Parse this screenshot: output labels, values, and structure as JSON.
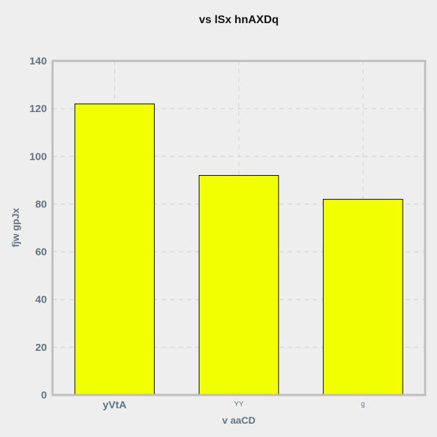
{
  "chart_data": {
    "type": "bar",
    "title": "vs  lSx hnAXDq",
    "xlabel": "v aaCD",
    "ylabel": "fjw gpJx",
    "categories": [
      "yVtA",
      "YY",
      "g"
    ],
    "values": [
      122,
      92,
      82
    ],
    "ylim": [
      0,
      140
    ],
    "yticks": [
      0,
      20,
      40,
      60,
      80,
      100,
      120,
      140
    ],
    "grid": true,
    "legend": "none",
    "colors": {
      "bar_fill": "#f2ff00",
      "bar_stroke": "#000000",
      "plot_background": "#eeeeee",
      "frame": "#bdbdbd",
      "grid": "#cfcfcf",
      "axis_text": "#5f7480",
      "title_text": "#111111"
    }
  }
}
